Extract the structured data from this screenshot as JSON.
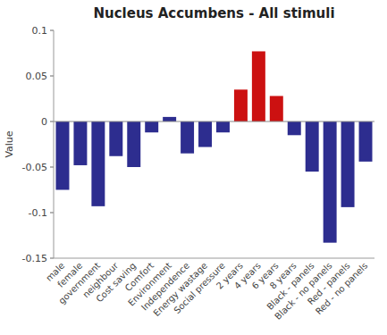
{
  "chart_data": {
    "type": "bar",
    "title": "Nucleus Accumbens - All stimuli",
    "ylabel": "Value",
    "categories": [
      "male",
      "female",
      "government",
      "neighbour",
      "Cost saving",
      "Comfort",
      "Environment",
      "Independence",
      "Energy wastage",
      "Social pressure",
      "2 years",
      "4 years",
      "6 years",
      "8 years",
      "Black - panels",
      "Black - no panels",
      "Red - panels",
      "Red - no panels"
    ],
    "values": [
      -0.075,
      -0.048,
      -0.093,
      -0.038,
      -0.05,
      -0.012,
      0.005,
      -0.035,
      -0.028,
      -0.012,
      0.035,
      0.077,
      0.028,
      -0.015,
      -0.055,
      -0.133,
      -0.094,
      -0.044
    ],
    "colors": [
      "#2d2d8f",
      "#2d2d8f",
      "#2d2d8f",
      "#2d2d8f",
      "#2d2d8f",
      "#2d2d8f",
      "#2d2d8f",
      "#2d2d8f",
      "#2d2d8f",
      "#2d2d8f",
      "#cc1111",
      "#cc1111",
      "#cc1111",
      "#2d2d8f",
      "#2d2d8f",
      "#2d2d8f",
      "#2d2d8f",
      "#2d2d8f"
    ],
    "ylim": [
      -0.15,
      0.1
    ],
    "yticks": [
      -0.15,
      -0.1,
      -0.05,
      0,
      0.05,
      0.1
    ],
    "grid": false
  }
}
